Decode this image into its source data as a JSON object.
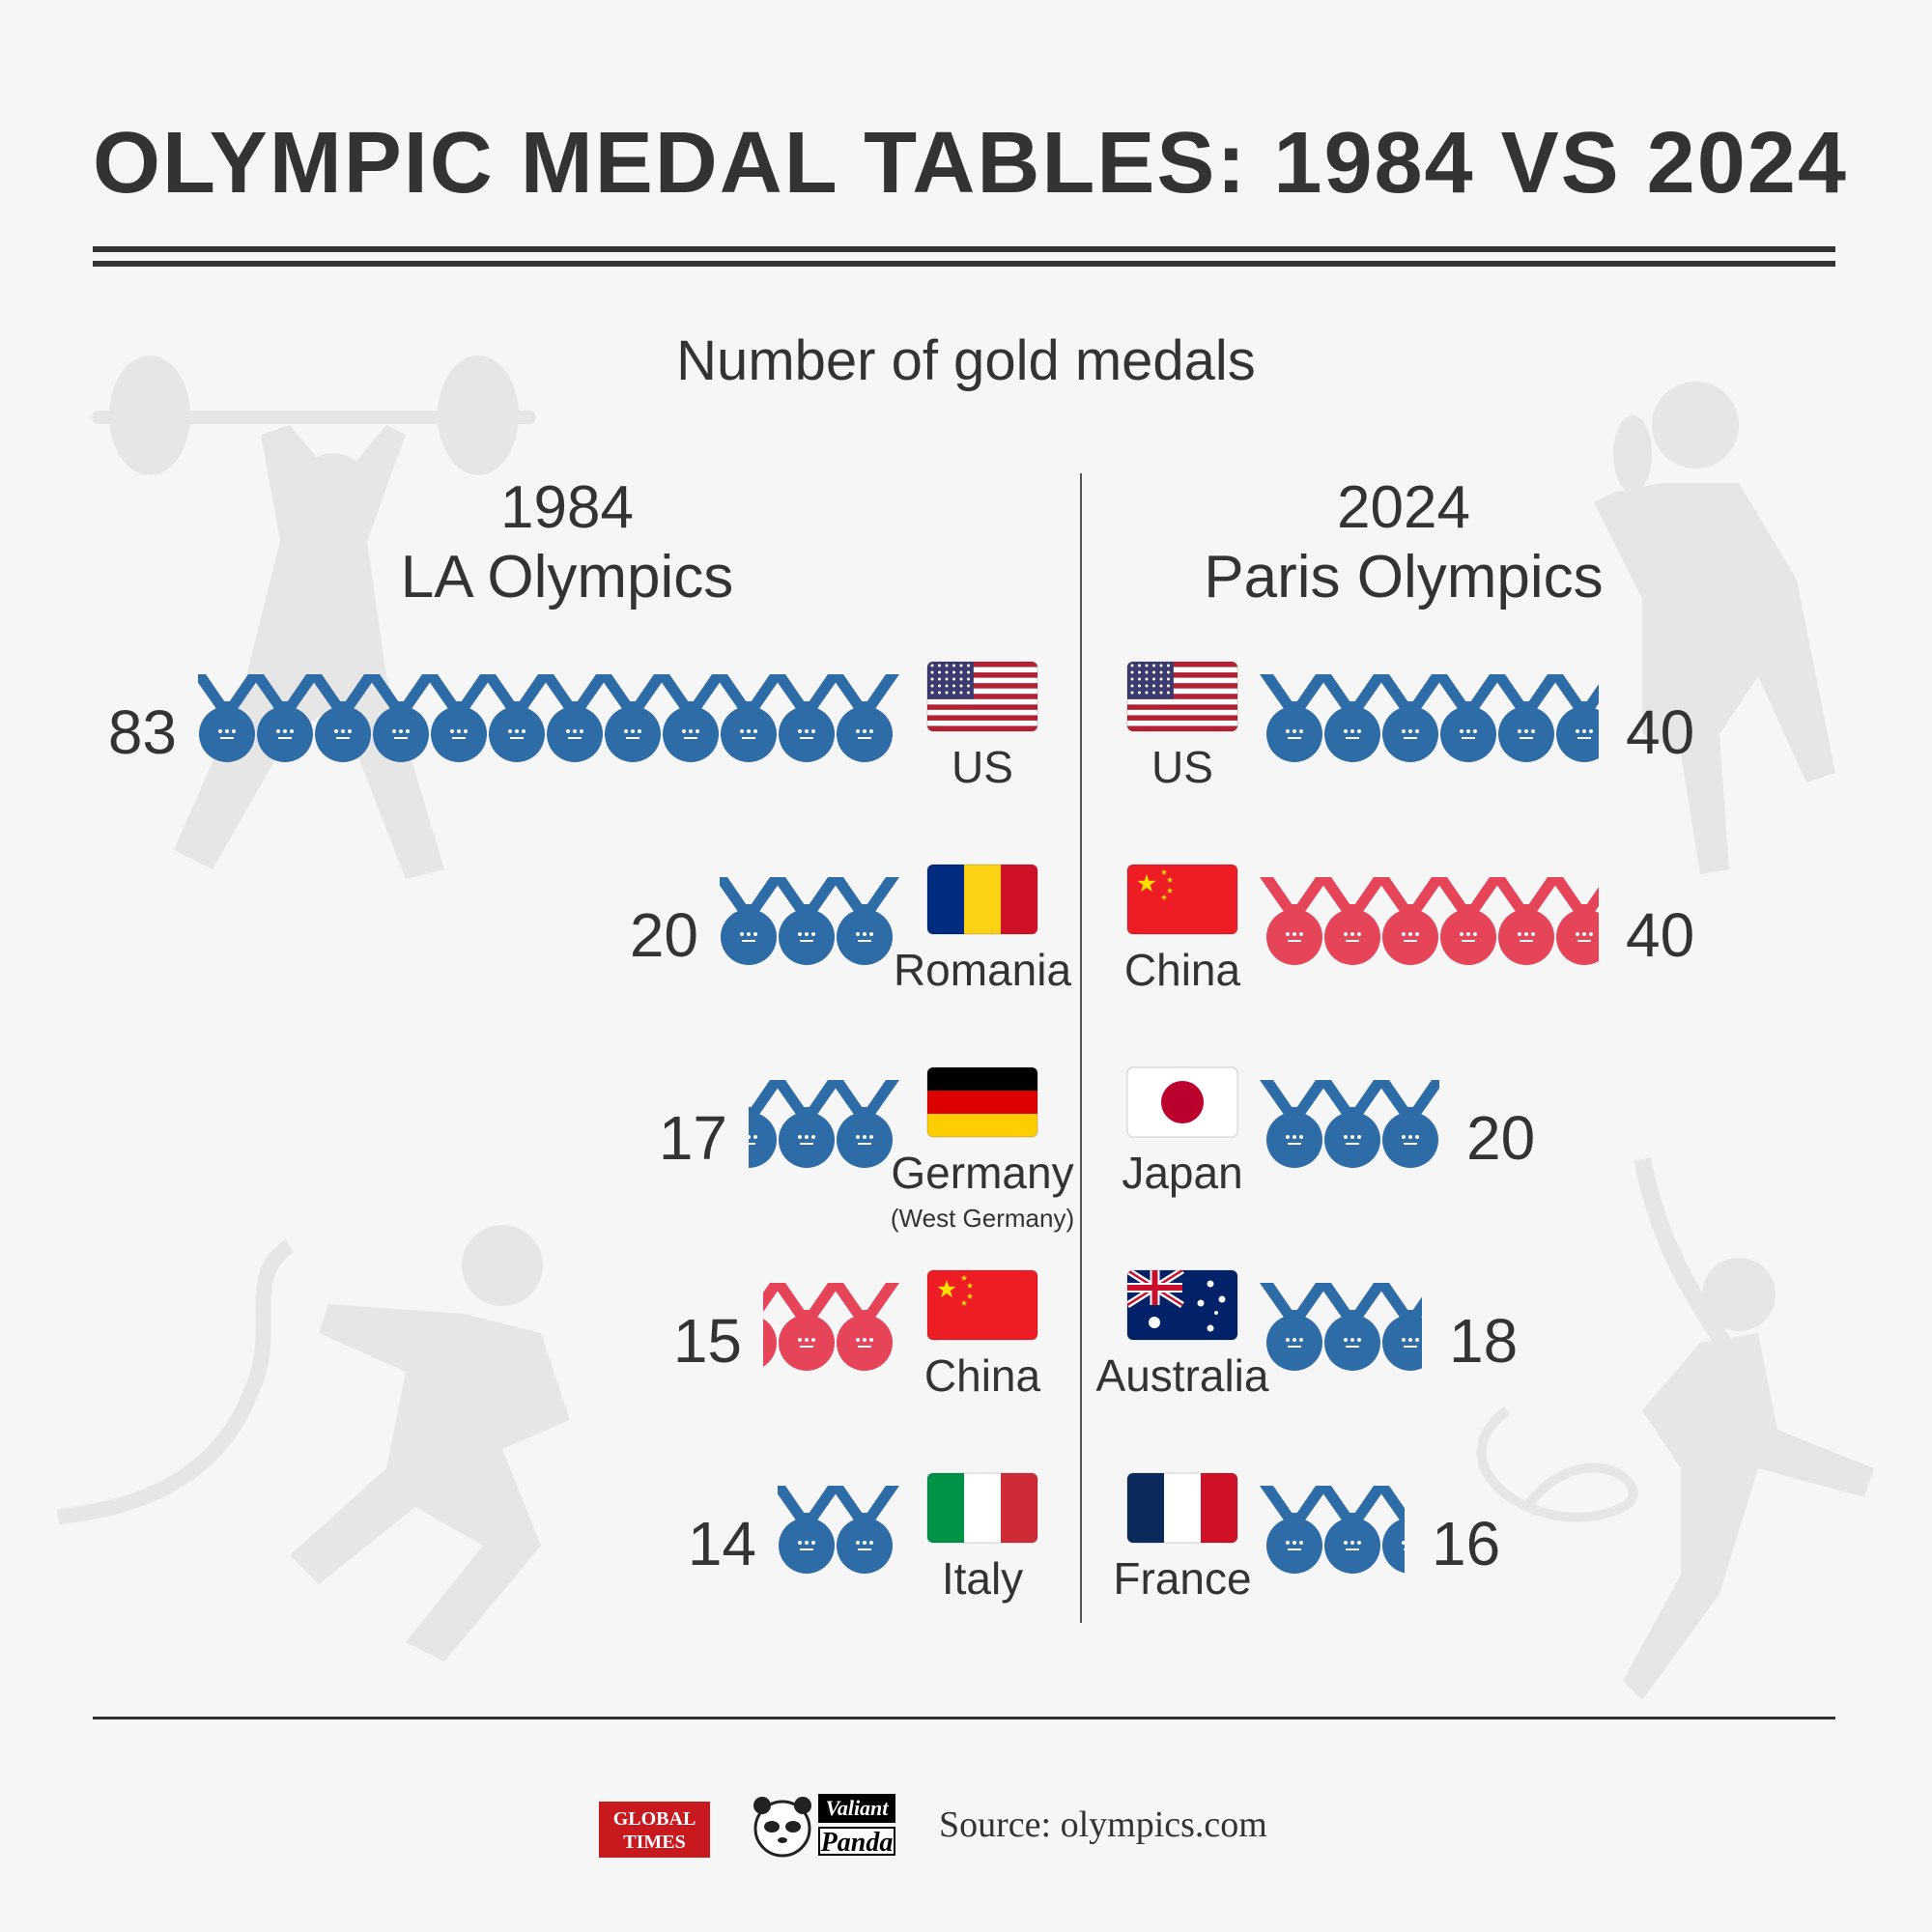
{
  "title": "OLYMPIC MEDAL TABLES: 1984 VS 2024",
  "subtitle": "Number of gold medals",
  "left_header": {
    "year": "1984",
    "event": "LA Olympics"
  },
  "right_header": {
    "year": "2024",
    "event": "Paris Olympics"
  },
  "footer": {
    "logo_global_times": "GLOBAL TIMES",
    "logo_valiant": "Valiant",
    "logo_panda": "Panda",
    "source": "Source: olympics.com"
  },
  "colors": {
    "blue_medal": "#2e6ca8",
    "red_medal": "#e64458",
    "text": "#333333",
    "bg": "#f6f6f6"
  },
  "chart_data": {
    "type": "pictogram-bar",
    "title": "Number of gold medals",
    "groups": [
      {
        "name": "1984 LA Olympics",
        "rows": [
          {
            "country": "US",
            "note": "",
            "gold": 83,
            "medal_icons": 12,
            "medal_color": "blue",
            "flag": "us"
          },
          {
            "country": "Romania",
            "note": "",
            "gold": 20,
            "medal_icons": 3,
            "medal_color": "blue",
            "flag": "romania"
          },
          {
            "country": "Germany",
            "note": "(West Germany)",
            "gold": 17,
            "medal_icons": 2.5,
            "medal_color": "blue",
            "flag": "germany"
          },
          {
            "country": "China",
            "note": "",
            "gold": 15,
            "medal_icons": 2.25,
            "medal_color": "red",
            "flag": "china"
          },
          {
            "country": "Italy",
            "note": "",
            "gold": 14,
            "medal_icons": 2,
            "medal_color": "blue",
            "flag": "italy"
          }
        ]
      },
      {
        "name": "2024 Paris Olympics",
        "rows": [
          {
            "country": "US",
            "note": "",
            "gold": 40,
            "medal_icons": 5.75,
            "medal_color": "blue",
            "flag": "us"
          },
          {
            "country": "China",
            "note": "",
            "gold": 40,
            "medal_icons": 5.75,
            "medal_color": "red",
            "flag": "china"
          },
          {
            "country": "Japan",
            "note": "",
            "gold": 20,
            "medal_icons": 3,
            "medal_color": "blue",
            "flag": "japan"
          },
          {
            "country": "Australia",
            "note": "",
            "gold": 18,
            "medal_icons": 2.7,
            "medal_color": "blue",
            "flag": "australia"
          },
          {
            "country": "France",
            "note": "",
            "gold": 16,
            "medal_icons": 2.4,
            "medal_color": "blue",
            "flag": "france"
          }
        ]
      }
    ]
  }
}
